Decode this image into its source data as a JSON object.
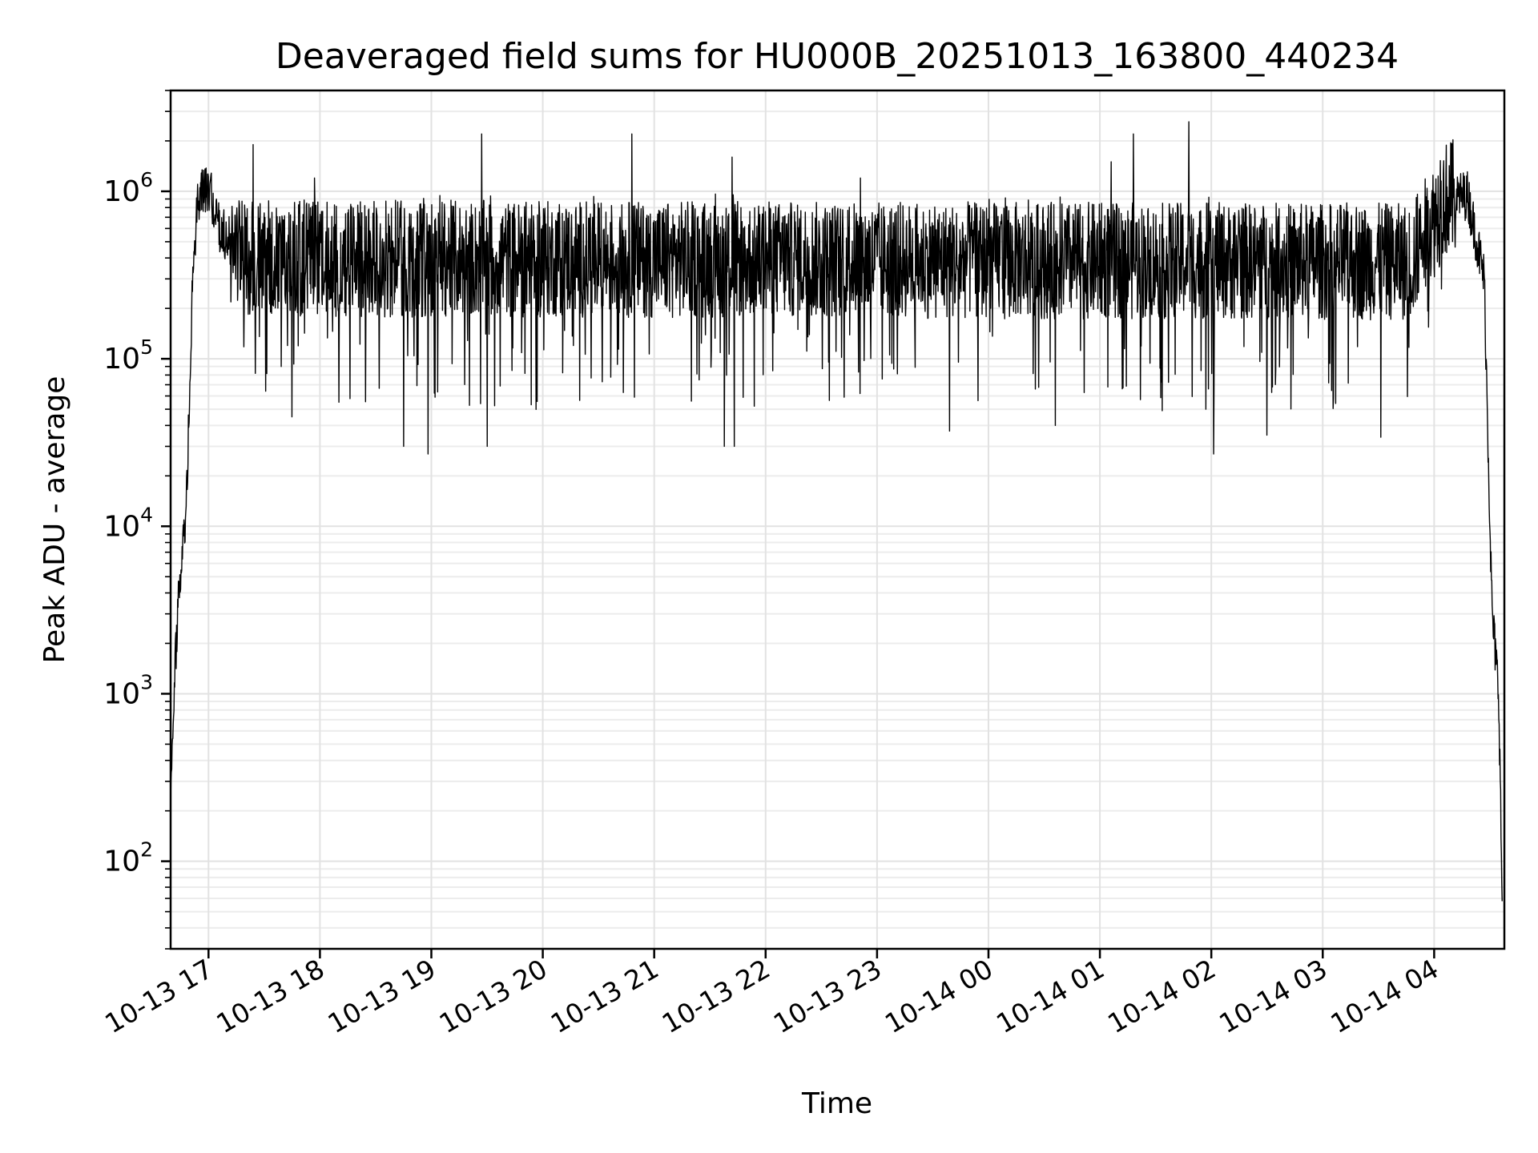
{
  "chart_data": {
    "type": "line",
    "title": "Deaveraged field sums for HU000B_20251013_163800_440234",
    "xlabel": "Time",
    "ylabel": "Peak ADU - average",
    "yscale": "log",
    "ylim": [
      30,
      4000000
    ],
    "xlim_hours": [
      16.66,
      28.63
    ],
    "grid": true,
    "x_ticks": [
      {
        "hour": 17,
        "label": "10-13 17"
      },
      {
        "hour": 18,
        "label": "10-13 18"
      },
      {
        "hour": 19,
        "label": "10-13 19"
      },
      {
        "hour": 20,
        "label": "10-13 20"
      },
      {
        "hour": 21,
        "label": "10-13 21"
      },
      {
        "hour": 22,
        "label": "10-13 22"
      },
      {
        "hour": 23,
        "label": "10-13 23"
      },
      {
        "hour": 24,
        "label": "10-14 00"
      },
      {
        "hour": 25,
        "label": "10-14 01"
      },
      {
        "hour": 26,
        "label": "10-14 02"
      },
      {
        "hour": 27,
        "label": "10-14 03"
      },
      {
        "hour": 28,
        "label": "10-14 04"
      }
    ],
    "y_ticks": [
      {
        "value": 100,
        "base": "10",
        "exp": "2"
      },
      {
        "value": 1000,
        "base": "10",
        "exp": "3"
      },
      {
        "value": 10000,
        "base": "10",
        "exp": "4"
      },
      {
        "value": 100000,
        "base": "10",
        "exp": "5"
      },
      {
        "value": 1000000,
        "base": "10",
        "exp": "6"
      }
    ],
    "series": [
      {
        "name": "field sums",
        "time_start_hour": 16.66,
        "time_end_hour": 28.61,
        "baseline_typical": 350000,
        "noise_range": [
          30000,
          800000
        ],
        "envelope": [
          [
            16.66,
            200
          ],
          [
            16.7,
            1500
          ],
          [
            16.75,
            6000
          ],
          [
            16.8,
            12000
          ],
          [
            16.85,
            200000
          ],
          [
            16.9,
            900000
          ],
          [
            17.0,
            1100000
          ],
          [
            17.1,
            600000
          ],
          [
            17.3,
            400000
          ],
          [
            27.8,
            380000
          ],
          [
            28.1,
            900000
          ],
          [
            28.3,
            950000
          ],
          [
            28.45,
            300000
          ],
          [
            28.52,
            3000
          ],
          [
            28.58,
            1000
          ],
          [
            28.61,
            60
          ]
        ],
        "spikes": [
          [
            17.4,
            1900000
          ],
          [
            17.95,
            1200000
          ],
          [
            19.45,
            2200000
          ],
          [
            20.8,
            2200000
          ],
          [
            21.7,
            1600000
          ],
          [
            22.85,
            1200000
          ],
          [
            25.3,
            2200000
          ],
          [
            25.8,
            2600000
          ],
          [
            25.1,
            1500000
          ]
        ],
        "dips": [
          [
            17.75,
            45000
          ],
          [
            18.75,
            30000
          ],
          [
            18.97,
            27000
          ],
          [
            19.5,
            30000
          ],
          [
            21.63,
            30000
          ],
          [
            21.72,
            30000
          ],
          [
            23.65,
            37000
          ],
          [
            24.6,
            40000
          ],
          [
            26.02,
            27000
          ],
          [
            26.5,
            35000
          ],
          [
            27.52,
            34000
          ]
        ]
      }
    ]
  }
}
